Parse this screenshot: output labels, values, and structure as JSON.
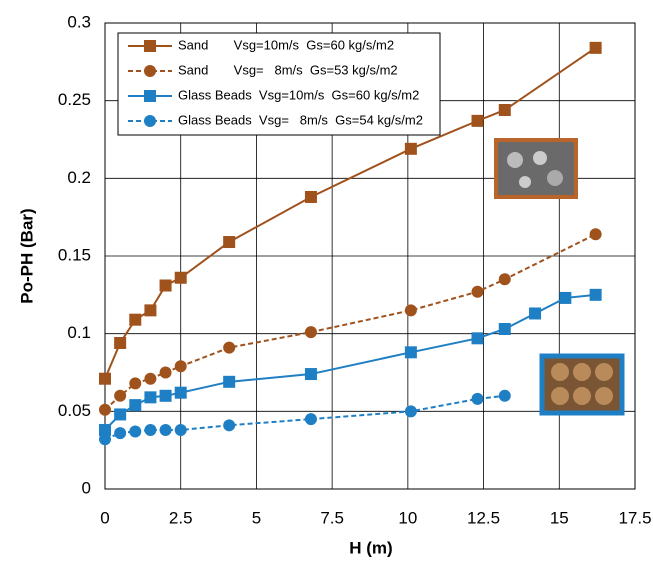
{
  "chart_data": {
    "type": "line",
    "x_label": "H (m)",
    "y_label": "Po-PH (Bar)",
    "xlim": [
      0,
      17.5
    ],
    "xticks": [
      0,
      2.5,
      5,
      7.5,
      10,
      12.5,
      15,
      17.5
    ],
    "ylim": [
      0,
      0.3
    ],
    "yticks": [
      0,
      0.05,
      0.1,
      0.15,
      0.2,
      0.25,
      0.3
    ],
    "grid": true,
    "legend": "upper left",
    "series": [
      {
        "name": "Sand       Vsg=10m/s  Gs=60 kg/s/m2",
        "color": "#a0521d",
        "marker": "square",
        "dash": false,
        "x": [
          0,
          0.5,
          1,
          1.5,
          2,
          2.5,
          4.1,
          6.8,
          10.1,
          12.3,
          13.2,
          16.2
        ],
        "values": [
          0.071,
          0.094,
          0.109,
          0.115,
          0.131,
          0.136,
          0.159,
          0.188,
          0.219,
          0.237,
          0.244,
          0.284
        ]
      },
      {
        "name": "Sand       Vsg=   8m/s  Gs=53 kg/s/m2",
        "color": "#a0521d",
        "marker": "circle",
        "dash": true,
        "x": [
          0,
          0.5,
          1,
          1.5,
          2,
          2.5,
          4.1,
          6.8,
          10.1,
          12.3,
          13.2,
          16.2
        ],
        "values": [
          0.051,
          0.06,
          0.068,
          0.071,
          0.075,
          0.079,
          0.091,
          0.101,
          0.115,
          0.127,
          0.135,
          0.164
        ]
      },
      {
        "name": "Glass Beads  Vsg=10m/s  Gs=60 kg/s/m2",
        "color": "#1f7fc4",
        "marker": "square",
        "dash": false,
        "x": [
          0,
          0.5,
          1,
          1.5,
          2,
          2.5,
          4.1,
          6.8,
          10.1,
          12.3,
          13.2,
          14.2,
          15.2,
          16.2
        ],
        "values": [
          0.038,
          0.048,
          0.054,
          0.059,
          0.06,
          0.062,
          0.069,
          0.074,
          0.088,
          0.097,
          0.103,
          0.113,
          0.123,
          0.125
        ]
      },
      {
        "name": "Glass Beads  Vsg=   8m/s  Gs=54 kg/s/m2",
        "color": "#1f7fc4",
        "marker": "circle",
        "dash": true,
        "x": [
          0,
          0,
          0.5,
          1,
          1.5,
          2,
          2.5,
          4.1,
          6.8,
          10.1,
          12.3,
          13.2
        ],
        "values": [
          0.037,
          0.032,
          0.036,
          0.037,
          0.038,
          0.038,
          0.038,
          0.041,
          0.045,
          0.05,
          0.058,
          0.06
        ]
      }
    ]
  }
}
